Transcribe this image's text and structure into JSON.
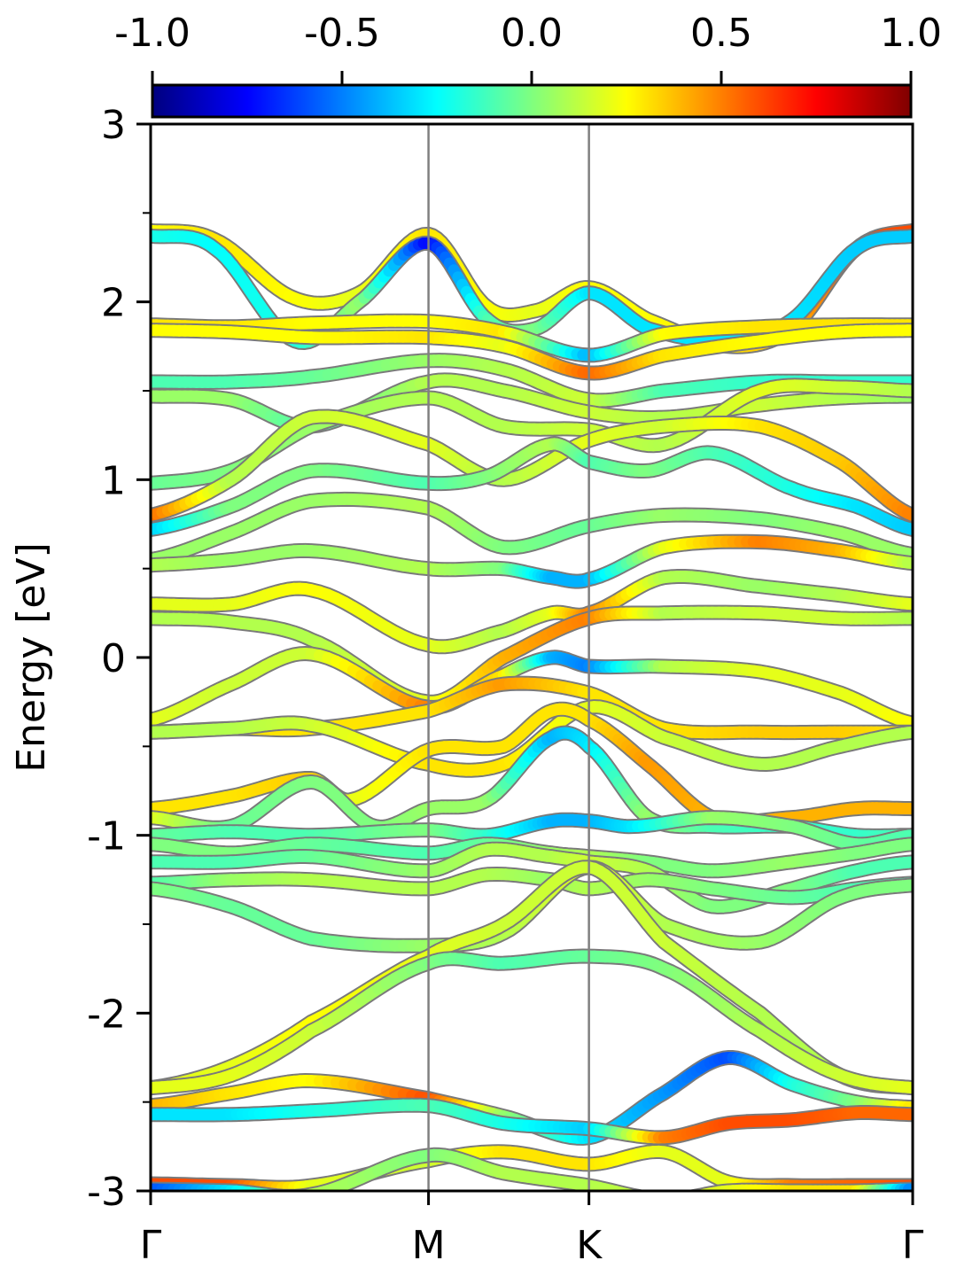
{
  "chart_data": {
    "type": "line",
    "ylabel": "Energy [eV]",
    "ylim": [
      -3,
      3
    ],
    "y_major_ticks": [
      3,
      2,
      1,
      0,
      -1,
      -2,
      -3
    ],
    "y_major_tick_labels": [
      "3",
      "2",
      "1",
      "0",
      "-1",
      "-2",
      "-3"
    ],
    "y_minor_ticks": [
      2.5,
      1.5,
      0.5,
      -0.5,
      -1.5,
      -2.5
    ],
    "xlim": [
      0,
      4.75
    ],
    "x_ticks": [
      0,
      1.732,
      2.732,
      4.75
    ],
    "x_tick_labels": [
      "Γ",
      "M",
      "K",
      "Γ"
    ],
    "vlines": [
      1.732,
      2.732
    ],
    "grid": false,
    "legend": "none",
    "colorbar": {
      "position": "top",
      "colormap": "jet",
      "range": [
        -1.0,
        1.0
      ],
      "ticks": [
        -1.0,
        -0.5,
        0.0,
        0.5,
        1.0
      ],
      "tick_labels": [
        "-1.0",
        "-0.5",
        "0.0",
        "0.5",
        "1.0"
      ],
      "stops": [
        "#00007f",
        "#0000ff",
        "#007fff",
        "#00ffff",
        "#7fff7f",
        "#ffff00",
        "#ff7f00",
        "#ff0000",
        "#7f0000"
      ]
    },
    "series": [
      {
        "x": [
          0,
          0.4,
          0.9,
          1.3,
          1.732,
          2.1,
          2.4,
          2.732,
          3.1,
          3.6,
          4.0,
          4.4,
          4.75
        ],
        "y": [
          2.4,
          2.35,
          2.02,
          2.05,
          2.38,
          1.97,
          1.95,
          2.08,
          1.9,
          1.75,
          1.85,
          2.3,
          2.4
        ],
        "c": [
          0.25,
          0.3,
          0.25,
          0.2,
          0.3,
          0.25,
          0.2,
          0.25,
          0.25,
          0.3,
          0.4,
          0.6,
          0.6
        ]
      },
      {
        "x": [
          0,
          0.4,
          0.9,
          1.3,
          1.732,
          2.1,
          2.4,
          2.732,
          3.1,
          3.6,
          4.0,
          4.4,
          4.75
        ],
        "y": [
          2.37,
          2.3,
          1.78,
          2.0,
          2.33,
          1.9,
          1.85,
          2.05,
          1.85,
          1.78,
          1.9,
          2.3,
          2.37
        ],
        "c": [
          -0.2,
          -0.25,
          -0.2,
          0.05,
          -0.75,
          -0.1,
          0.0,
          -0.3,
          -0.3,
          -0.3,
          -0.3,
          -0.35,
          -0.35
        ]
      },
      {
        "x": [
          0,
          0.5,
          1.0,
          1.732,
          2.2,
          2.732,
          3.2,
          3.8,
          4.3,
          4.75
        ],
        "y": [
          1.87,
          1.86,
          1.88,
          1.89,
          1.83,
          1.7,
          1.82,
          1.86,
          1.87,
          1.87
        ],
        "c": [
          0.3,
          0.3,
          0.25,
          0.25,
          0.3,
          -0.4,
          0.25,
          0.3,
          0.3,
          0.3
        ]
      },
      {
        "x": [
          0,
          0.5,
          1.0,
          1.732,
          2.2,
          2.732,
          3.2,
          3.8,
          4.3,
          4.75
        ],
        "y": [
          1.84,
          1.83,
          1.8,
          1.8,
          1.75,
          1.6,
          1.7,
          1.78,
          1.83,
          1.84
        ],
        "c": [
          0.25,
          0.25,
          0.25,
          0.3,
          0.2,
          0.55,
          0.3,
          0.25,
          0.25,
          0.25
        ]
      },
      {
        "x": [
          0,
          0.5,
          1.0,
          1.732,
          2.2,
          2.732,
          3.2,
          3.8,
          4.3,
          4.75
        ],
        "y": [
          1.55,
          1.55,
          1.58,
          1.67,
          1.62,
          1.45,
          1.5,
          1.55,
          1.55,
          1.55
        ],
        "c": [
          -0.1,
          -0.1,
          -0.05,
          0.05,
          0.1,
          0.15,
          -0.1,
          -0.15,
          -0.15,
          -0.15
        ]
      },
      {
        "x": [
          0,
          0.5,
          1.0,
          1.732,
          2.2,
          2.732,
          3.2,
          3.8,
          4.3,
          4.75
        ],
        "y": [
          1.47,
          1.45,
          1.3,
          1.55,
          1.5,
          1.38,
          1.35,
          1.42,
          1.46,
          1.47
        ],
        "c": [
          0.05,
          0.05,
          -0.1,
          0.1,
          0.1,
          0.15,
          0.1,
          0.15,
          0.1,
          0.05
        ]
      },
      {
        "x": [
          0,
          0.5,
          1.0,
          1.732,
          2.2,
          2.732,
          3.2,
          3.8,
          4.3,
          4.75
        ],
        "y": [
          0.98,
          1.05,
          1.3,
          1.46,
          1.3,
          1.28,
          1.2,
          1.5,
          1.52,
          1.5
        ],
        "c": [
          -0.05,
          0.0,
          0.05,
          0.1,
          0.1,
          0.15,
          0.1,
          0.2,
          0.15,
          0.1
        ]
      },
      {
        "x": [
          0,
          0.5,
          1.0,
          1.732,
          2.2,
          2.732,
          3.2,
          3.8,
          4.3,
          4.75
        ],
        "y": [
          0.8,
          1.0,
          1.35,
          1.2,
          1.0,
          1.22,
          1.3,
          1.3,
          1.1,
          0.8
        ],
        "c": [
          0.55,
          0.1,
          0.15,
          0.2,
          0.1,
          0.2,
          0.15,
          0.3,
          0.35,
          0.5
        ]
      },
      {
        "x": [
          0,
          0.5,
          1.0,
          1.732,
          2.1,
          2.5,
          2.732,
          3.1,
          3.5,
          4.0,
          4.4,
          4.75
        ],
        "y": [
          0.72,
          0.85,
          1.05,
          0.98,
          1.02,
          1.2,
          1.1,
          1.05,
          1.15,
          0.95,
          0.85,
          0.72
        ],
        "c": [
          -0.35,
          0.0,
          0.0,
          -0.1,
          0.0,
          0.1,
          -0.1,
          0.0,
          -0.1,
          -0.2,
          -0.3,
          -0.35
        ]
      },
      {
        "x": [
          0,
          0.5,
          1.0,
          1.732,
          2.2,
          2.732,
          3.2,
          3.8,
          4.3,
          4.75
        ],
        "y": [
          0.55,
          0.7,
          0.88,
          0.84,
          0.62,
          0.74,
          0.8,
          0.78,
          0.7,
          0.58
        ],
        "c": [
          0.05,
          0.05,
          0.05,
          0.1,
          0.0,
          -0.05,
          0.05,
          0.0,
          0.05,
          0.05
        ]
      },
      {
        "x": [
          0,
          0.5,
          1.0,
          1.732,
          2.2,
          2.5,
          2.732,
          3.2,
          3.8,
          4.3,
          4.75
        ],
        "y": [
          0.52,
          0.55,
          0.6,
          0.5,
          0.5,
          0.45,
          0.44,
          0.62,
          0.65,
          0.6,
          0.53
        ],
        "c": [
          0.1,
          0.05,
          0.05,
          0.1,
          0.0,
          -0.4,
          -0.4,
          0.2,
          0.5,
          0.4,
          0.1
        ]
      },
      {
        "x": [
          0,
          0.5,
          1.0,
          1.732,
          2.2,
          2.5,
          2.732,
          3.2,
          3.8,
          4.3,
          4.75
        ],
        "y": [
          0.3,
          0.3,
          0.38,
          0.07,
          0.15,
          0.25,
          0.25,
          0.45,
          0.4,
          0.35,
          0.3
        ],
        "c": [
          0.2,
          0.2,
          0.25,
          0.2,
          0.1,
          0.2,
          0.5,
          0.1,
          0.05,
          0.1,
          0.2
        ]
      },
      {
        "x": [
          0,
          0.5,
          1.0,
          1.732,
          2.2,
          2.732,
          3.2,
          3.8,
          4.3,
          4.75
        ],
        "y": [
          0.22,
          0.2,
          0.1,
          -0.25,
          0.0,
          0.22,
          0.25,
          0.25,
          0.22,
          0.22
        ],
        "c": [
          0.1,
          0.1,
          0.1,
          0.2,
          0.4,
          0.5,
          0.1,
          0.15,
          0.15,
          0.1
        ]
      },
      {
        "x": [
          0,
          0.5,
          1.0,
          1.732,
          2.2,
          2.5,
          2.732,
          3.2,
          3.8,
          4.3,
          4.75
        ],
        "y": [
          -0.35,
          -0.15,
          0.02,
          -0.28,
          -0.1,
          0.0,
          -0.05,
          -0.05,
          -0.08,
          -0.2,
          -0.37
        ],
        "c": [
          0.2,
          0.15,
          0.15,
          0.5,
          0.3,
          -0.4,
          -0.5,
          0.1,
          0.2,
          0.2,
          0.25
        ]
      },
      {
        "x": [
          0,
          0.5,
          1.0,
          1.732,
          2.2,
          2.732,
          3.2,
          3.8,
          4.3,
          4.75
        ],
        "y": [
          -0.42,
          -0.4,
          -0.4,
          -0.3,
          -0.15,
          -0.2,
          -0.4,
          -0.42,
          -0.42,
          -0.42
        ],
        "c": [
          0.3,
          0.3,
          0.3,
          0.3,
          0.45,
          0.3,
          0.3,
          0.35,
          0.35,
          0.3
        ]
      },
      {
        "x": [
          0,
          0.5,
          1.0,
          1.732,
          2.2,
          2.732,
          3.2,
          3.8,
          4.3,
          4.75
        ],
        "y": [
          -0.42,
          -0.4,
          -0.38,
          -0.6,
          -0.6,
          -0.28,
          -0.45,
          -0.6,
          -0.5,
          -0.42
        ],
        "c": [
          0.1,
          0.1,
          0.15,
          0.3,
          0.3,
          0.2,
          0.15,
          0.1,
          0.1,
          0.1
        ]
      },
      {
        "x": [
          0,
          0.5,
          1.0,
          1.25,
          1.732,
          2.2,
          2.5,
          2.732,
          3.1,
          3.5,
          4.0,
          4.4,
          4.75
        ],
        "y": [
          -0.85,
          -0.78,
          -0.68,
          -0.8,
          -0.52,
          -0.5,
          -0.3,
          -0.35,
          -0.6,
          -0.9,
          -0.9,
          -0.85,
          -0.85
        ],
        "c": [
          0.3,
          0.3,
          0.35,
          0.2,
          0.3,
          0.3,
          0.3,
          0.3,
          0.45,
          0.4,
          0.4,
          0.4,
          0.4
        ]
      },
      {
        "x": [
          0,
          0.5,
          1.0,
          1.4,
          1.732,
          2.1,
          2.5,
          2.732,
          3.1,
          3.5,
          4.0,
          4.4,
          4.75
        ],
        "y": [
          -0.9,
          -0.95,
          -0.7,
          -0.95,
          -0.85,
          -0.8,
          -0.45,
          -0.5,
          -0.9,
          -0.95,
          -0.95,
          -1.0,
          -1.0
        ],
        "c": [
          0.2,
          -0.05,
          0.0,
          0.0,
          0.05,
          0.05,
          -0.4,
          -0.3,
          0.05,
          -0.1,
          -0.15,
          -0.15,
          -0.1
        ]
      },
      {
        "x": [
          0,
          0.5,
          1.0,
          1.732,
          2.1,
          2.5,
          2.732,
          3.0,
          3.5,
          4.0,
          4.4,
          4.75
        ],
        "y": [
          -1.0,
          -0.98,
          -1.0,
          -0.97,
          -1.0,
          -0.92,
          -0.92,
          -0.95,
          -0.9,
          -0.95,
          -1.05,
          -1.0
        ],
        "c": [
          -0.05,
          -0.1,
          -0.1,
          0.0,
          -0.15,
          -0.4,
          -0.4,
          -0.3,
          0.05,
          0.0,
          -0.05,
          -0.1
        ]
      },
      {
        "x": [
          0,
          0.5,
          1.0,
          1.732,
          2.1,
          2.5,
          2.732,
          3.1,
          3.5,
          4.0,
          4.4,
          4.75
        ],
        "y": [
          -1.05,
          -1.1,
          -1.05,
          -1.1,
          -1.05,
          -1.1,
          -1.12,
          -1.15,
          -1.2,
          -1.15,
          -1.1,
          -1.05
        ],
        "c": [
          0.0,
          0.0,
          -0.05,
          -0.1,
          -0.05,
          0.05,
          0.1,
          0.0,
          0.0,
          0.05,
          0.0,
          0.0
        ]
      },
      {
        "x": [
          0,
          0.5,
          1.0,
          1.732,
          2.1,
          2.5,
          2.732,
          3.1,
          3.5,
          4.0,
          4.4,
          4.75
        ],
        "y": [
          -1.15,
          -1.15,
          -1.12,
          -1.2,
          -1.08,
          -1.12,
          -1.15,
          -1.2,
          -1.4,
          -1.3,
          -1.2,
          -1.15
        ],
        "c": [
          -0.1,
          -0.1,
          -0.05,
          0.05,
          0.1,
          0.1,
          0.15,
          0.1,
          0.0,
          0.0,
          -0.1,
          -0.1
        ]
      },
      {
        "x": [
          0,
          0.5,
          1.0,
          1.732,
          2.1,
          2.5,
          2.732,
          3.1,
          3.5,
          4.0,
          4.4,
          4.75
        ],
        "y": [
          -1.27,
          -1.25,
          -1.25,
          -1.3,
          -1.22,
          -1.25,
          -1.3,
          -1.25,
          -1.3,
          -1.35,
          -1.3,
          -1.27
        ],
        "c": [
          -0.1,
          0.05,
          0.1,
          0.1,
          0.1,
          0.05,
          0.1,
          0.05,
          0.0,
          -0.05,
          -0.1,
          -0.1
        ]
      },
      {
        "x": [
          0,
          0.5,
          1.0,
          1.732,
          2.2,
          2.732,
          3.2,
          3.8,
          4.3,
          4.75
        ],
        "y": [
          -1.3,
          -1.4,
          -1.58,
          -1.62,
          -1.55,
          -1.18,
          -1.5,
          -1.6,
          -1.35,
          -1.28
        ],
        "c": [
          0.0,
          -0.05,
          -0.05,
          0.05,
          0.1,
          0.2,
          0.1,
          0.05,
          0.0,
          0.0
        ]
      },
      {
        "x": [
          0,
          0.5,
          1.0,
          1.732,
          2.2,
          2.732,
          3.2,
          3.8,
          4.3,
          4.75
        ],
        "y": [
          -2.42,
          -2.3,
          -2.05,
          -1.68,
          -1.5,
          -1.18,
          -1.6,
          -2.0,
          -2.35,
          -2.42
        ],
        "c": [
          0.2,
          0.2,
          0.25,
          0.2,
          0.15,
          0.15,
          0.15,
          0.1,
          0.1,
          0.15
        ]
      },
      {
        "x": [
          0,
          0.5,
          1.0,
          1.732,
          2.2,
          2.732,
          3.2,
          3.8,
          4.3,
          4.75
        ],
        "y": [
          -2.42,
          -2.35,
          -2.1,
          -1.72,
          -1.72,
          -1.68,
          -1.75,
          -2.1,
          -2.35,
          -2.42
        ],
        "c": [
          0.2,
          0.2,
          0.15,
          0.0,
          -0.1,
          -0.05,
          0.0,
          0.1,
          0.15,
          0.2
        ]
      },
      {
        "x": [
          0,
          0.5,
          1.0,
          1.732,
          2.2,
          2.732,
          3.2,
          3.6,
          4.0,
          4.4,
          4.75
        ],
        "y": [
          -2.52,
          -2.45,
          -2.38,
          -2.48,
          -2.58,
          -2.7,
          -2.45,
          -2.25,
          -2.4,
          -2.5,
          -2.53
        ],
        "c": [
          0.4,
          0.3,
          0.25,
          0.6,
          0.05,
          -0.3,
          -0.45,
          -0.6,
          -0.2,
          0.0,
          0.3
        ]
      },
      {
        "x": [
          0,
          0.5,
          1.0,
          1.732,
          2.2,
          2.732,
          3.2,
          3.6,
          4.0,
          4.4,
          4.75
        ],
        "y": [
          -2.57,
          -2.57,
          -2.55,
          -2.52,
          -2.62,
          -2.65,
          -2.7,
          -2.62,
          -2.6,
          -2.56,
          -2.57
        ],
        "c": [
          -0.3,
          -0.3,
          -0.2,
          -0.1,
          -0.2,
          -0.35,
          0.5,
          0.6,
          0.6,
          0.55,
          0.55
        ]
      },
      {
        "x": [
          0,
          0.5,
          1.0,
          1.732,
          2.2,
          2.732,
          3.2,
          3.6,
          4.0,
          4.4,
          4.75
        ],
        "y": [
          -2.96,
          -2.97,
          -2.97,
          -2.83,
          -2.78,
          -2.85,
          -2.78,
          -2.95,
          -2.97,
          -2.97,
          -2.97
        ],
        "c": [
          0.6,
          0.6,
          0.2,
          0.15,
          0.3,
          0.3,
          0.2,
          0.2,
          0.5,
          0.55,
          0.6
        ]
      },
      {
        "x": [
          0,
          0.5,
          1.0,
          1.732,
          2.2,
          2.732,
          3.2,
          3.6,
          4.0,
          4.4,
          4.75
        ],
        "y": [
          -2.99,
          -3.0,
          -3.02,
          -2.8,
          -2.9,
          -2.97,
          -3.05,
          -3.0,
          -3.0,
          -3.0,
          -2.99
        ],
        "c": [
          -0.6,
          -0.3,
          0.1,
          0.0,
          0.1,
          0.1,
          0.15,
          0.2,
          0.3,
          0.3,
          -0.5
        ]
      }
    ]
  }
}
